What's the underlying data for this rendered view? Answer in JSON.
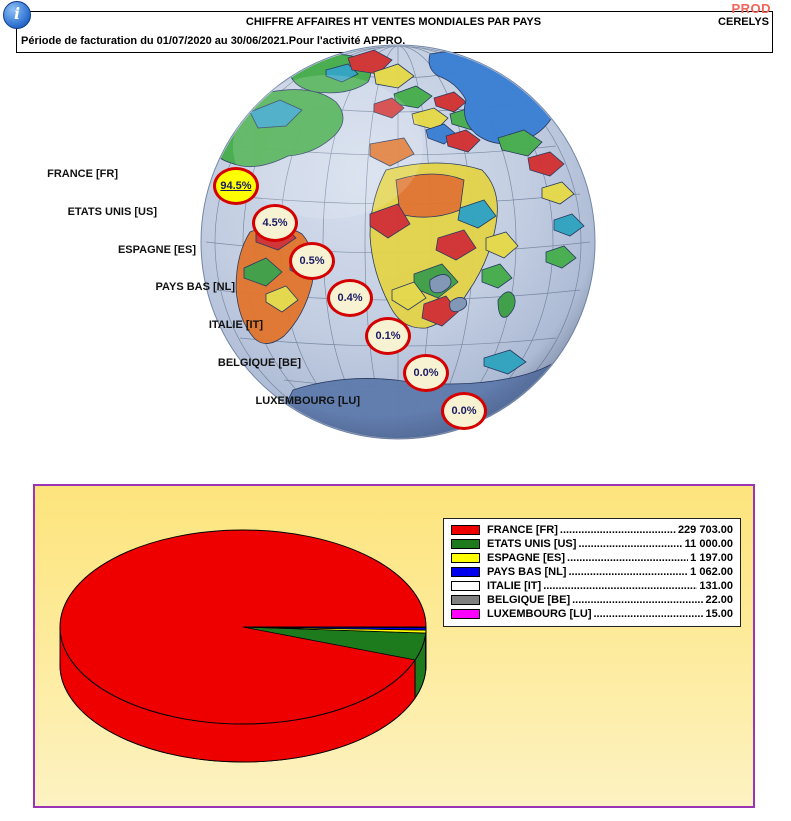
{
  "app": {
    "environment_badge": "PROD",
    "company": "CERELYS"
  },
  "header": {
    "title": "CHIFFRE AFFAIRES HT VENTES MONDIALES PAR PAYS",
    "subtitle": "Période de facturation du 01/07/2020 au 30/06/2021.Pour l'activité APPRO.",
    "info_icon": "info-icon"
  },
  "chart_data": [
    {
      "type": "map",
      "subtype": "globe-country-share",
      "items": [
        {
          "label": "FRANCE [FR]",
          "percent": 94.5,
          "percent_label": "94.5%",
          "highlighted": true
        },
        {
          "label": "ETATS UNIS [US]",
          "percent": 4.5,
          "percent_label": "4.5%",
          "highlighted": false
        },
        {
          "label": "ESPAGNE [ES]",
          "percent": 0.5,
          "percent_label": "0.5%",
          "highlighted": false
        },
        {
          "label": "PAYS BAS [NL]",
          "percent": 0.4,
          "percent_label": "0.4%",
          "highlighted": false
        },
        {
          "label": "ITALIE [IT]",
          "percent": 0.1,
          "percent_label": "0.1%",
          "highlighted": false
        },
        {
          "label": "BELGIQUE [BE]",
          "percent": 0.0,
          "percent_label": "0.0%",
          "highlighted": false
        },
        {
          "label": "LUXEMBOURG [LU]",
          "percent": 0.0,
          "percent_label": "0.0%",
          "highlighted": false
        }
      ]
    },
    {
      "type": "pie",
      "style": "3d",
      "categories": [
        "FRANCE [FR]",
        "ETATS UNIS [US]",
        "ESPAGNE [ES]",
        "PAYS BAS [NL]",
        "ITALIE [IT]",
        "BELGIQUE [BE]",
        "LUXEMBOURG [LU]"
      ],
      "values": [
        229703.0,
        11000.0,
        1197.0,
        1062.0,
        131.0,
        22.0,
        15.0
      ],
      "display_values": [
        "229 703.00",
        "11 000.00",
        "1 197.00",
        "1 062.00",
        "131.00",
        "22.00",
        "15.00"
      ],
      "colors": [
        "#ee0000",
        "#1d7a1d",
        "#ffff00",
        "#0000ee",
        "#ffffff",
        "#808080",
        "#ff00ff"
      ],
      "legend_position": "right"
    }
  ]
}
